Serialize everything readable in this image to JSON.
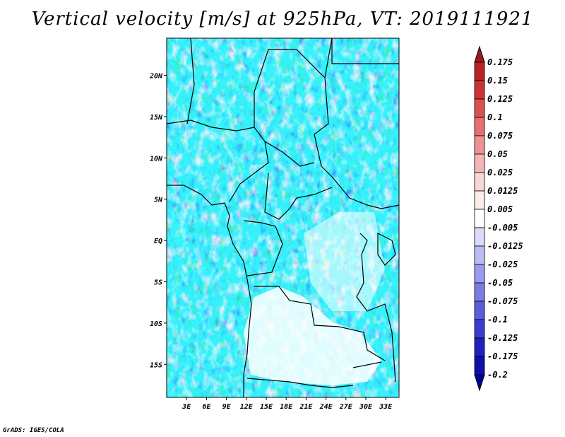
{
  "title": "Vertical velocity [m/s] at 925hPa, VT: 2019111921",
  "credit": "GrADS: IGES/COLA",
  "map": {
    "lat_labels": [
      "20N",
      "15N",
      "10N",
      "5N",
      "EQ",
      "5S",
      "10S",
      "15S"
    ],
    "lat_values": [
      20,
      15,
      10,
      5,
      0,
      -5,
      -10,
      -15
    ],
    "lon_labels": [
      "3E",
      "6E",
      "9E",
      "12E",
      "15E",
      "18E",
      "21E",
      "24E",
      "27E",
      "30E",
      "33E"
    ],
    "lon_values": [
      3,
      6,
      9,
      12,
      15,
      18,
      21,
      24,
      27,
      30,
      33
    ],
    "lat_range": [
      -19,
      24.5
    ],
    "lon_range": [
      0,
      35
    ]
  },
  "colorbar": {
    "labels": [
      "0.175",
      "0.15",
      "0.125",
      "0.1",
      "0.075",
      "0.05",
      "0.025",
      "0.0125",
      "0.005",
      "-0.005",
      "-0.0125",
      "-0.025",
      "-0.05",
      "-0.075",
      "-0.1",
      "-0.125",
      "-0.175",
      "-0.2"
    ],
    "colors": [
      "#a01818",
      "#b82222",
      "#cc3434",
      "#dc5050",
      "#e47070",
      "#ec9494",
      "#f2b6b6",
      "#f8d6d6",
      "#fcecec",
      "#ffffff",
      "#dcdcfa",
      "#bcbcf4",
      "#9c9cee",
      "#7c7ce6",
      "#5c5cdc",
      "#3c3cd0",
      "#2020c0",
      "#1010a8",
      "#0000a0"
    ]
  }
}
